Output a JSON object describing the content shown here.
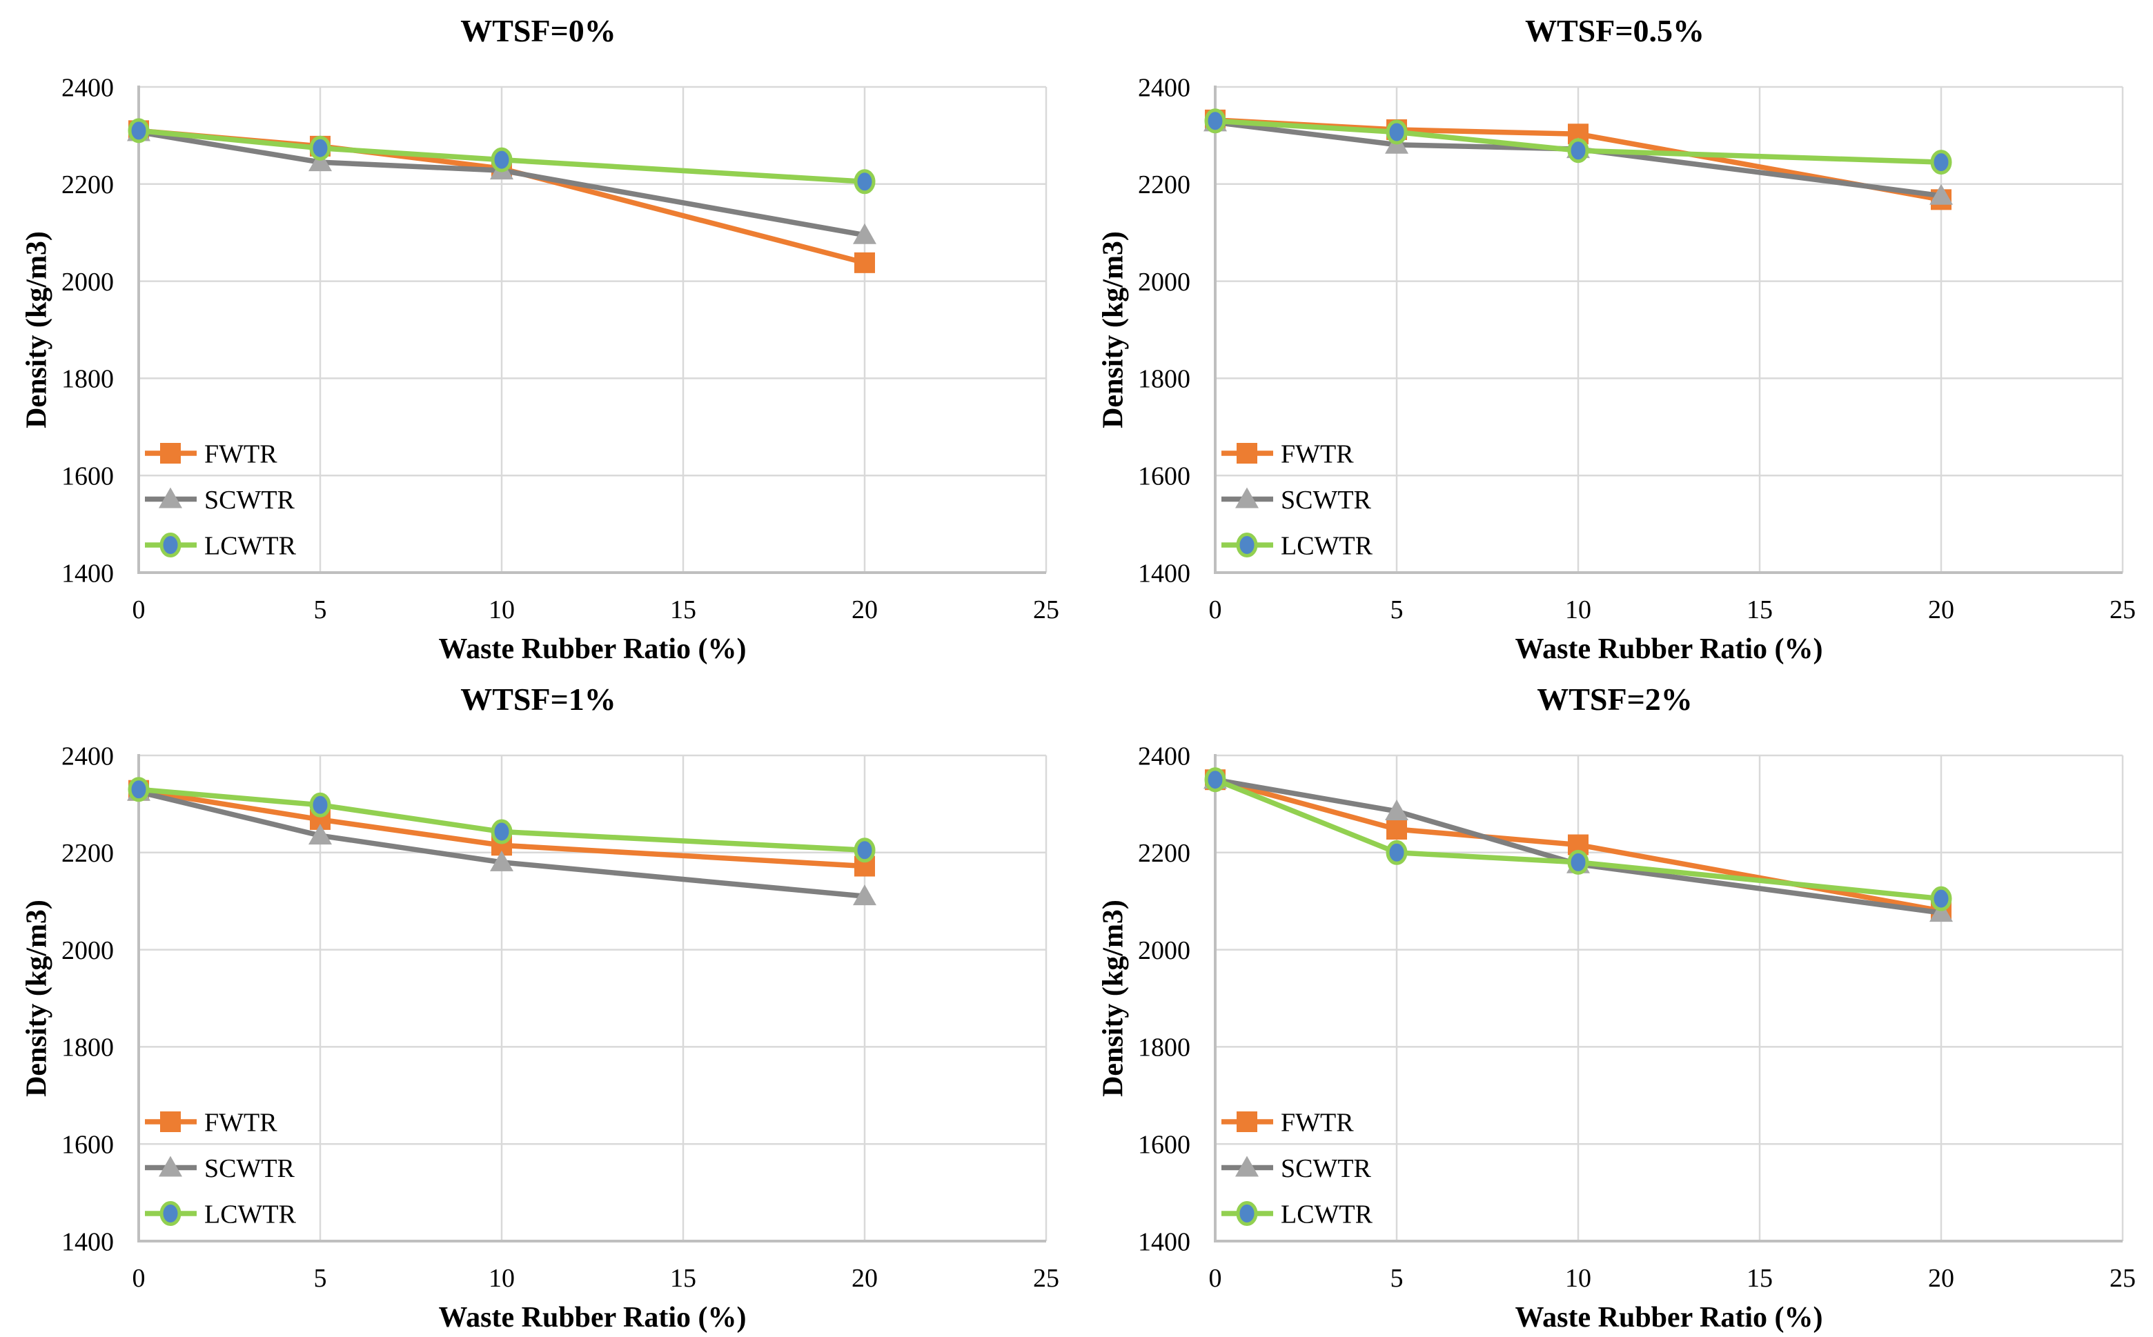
{
  "page": {
    "background": "#ffffff"
  },
  "colors": {
    "fwtr": "#ED7D31",
    "scwtr_line": "#7F7F7F",
    "scwtr_marker": "#A6A6A6",
    "lcwtr": "#92D050",
    "lcwtr_marker_fill": "#4E86C8",
    "gridline": "#D9D9D9",
    "axis_line": "#BFBFBF",
    "text": "#000000"
  },
  "legend": {
    "items": [
      "FWTR",
      "SCWTR",
      "LCWTR"
    ]
  },
  "chart_data": [
    {
      "id": "wtsf-0",
      "type": "line",
      "title": "WTSF=0%",
      "xlabel": "Waste Rubber Ratio (%)",
      "ylabel": "Density (kg/m3)",
      "xlim": [
        0,
        25
      ],
      "ylim": [
        1400,
        2400
      ],
      "xticks": [
        0,
        5,
        10,
        15,
        20,
        25
      ],
      "yticks": [
        1400,
        1600,
        1800,
        2000,
        2200,
        2400
      ],
      "grid": true,
      "legend_position": "lower-left",
      "x": [
        0,
        5,
        10,
        20
      ],
      "series": [
        {
          "name": "FWTR",
          "marker": "square",
          "values": [
            2310,
            2278,
            2232,
            2038
          ]
        },
        {
          "name": "SCWTR",
          "marker": "triangle",
          "values": [
            2307,
            2245,
            2228,
            2095
          ]
        },
        {
          "name": "LCWTR",
          "marker": "circle",
          "values": [
            2310,
            2274,
            2250,
            2205
          ]
        }
      ]
    },
    {
      "id": "wtsf-0-5",
      "type": "line",
      "title": "WTSF=0.5%",
      "xlabel": "Waste Rubber Ratio (%)",
      "ylabel": "Density (kg/m3)",
      "xlim": [
        0,
        25
      ],
      "ylim": [
        1400,
        2400
      ],
      "xticks": [
        0,
        5,
        10,
        15,
        20,
        25
      ],
      "yticks": [
        1400,
        1600,
        1800,
        2000,
        2200,
        2400
      ],
      "grid": true,
      "legend_position": "lower-left",
      "x": [
        0,
        5,
        10,
        20
      ],
      "series": [
        {
          "name": "FWTR",
          "marker": "square",
          "values": [
            2332,
            2312,
            2303,
            2168
          ]
        },
        {
          "name": "SCWTR",
          "marker": "triangle",
          "values": [
            2327,
            2281,
            2272,
            2176
          ]
        },
        {
          "name": "LCWTR",
          "marker": "circle",
          "values": [
            2330,
            2307,
            2269,
            2245
          ]
        }
      ]
    },
    {
      "id": "wtsf-1",
      "type": "line",
      "title": "WTSF=1%",
      "xlabel": "Waste Rubber Ratio (%)",
      "ylabel": "Density (kg/m3)",
      "xlim": [
        0,
        25
      ],
      "ylim": [
        1400,
        2400
      ],
      "xticks": [
        0,
        5,
        10,
        15,
        20,
        25
      ],
      "yticks": [
        1400,
        1600,
        1800,
        2000,
        2200,
        2400
      ],
      "grid": true,
      "legend_position": "lower-left",
      "x": [
        0,
        5,
        10,
        20
      ],
      "series": [
        {
          "name": "FWTR",
          "marker": "square",
          "values": [
            2328,
            2268,
            2215,
            2172
          ]
        },
        {
          "name": "SCWTR",
          "marker": "triangle",
          "values": [
            2325,
            2235,
            2180,
            2110
          ]
        },
        {
          "name": "LCWTR",
          "marker": "circle",
          "values": [
            2330,
            2298,
            2243,
            2205
          ]
        }
      ]
    },
    {
      "id": "wtsf-2",
      "type": "line",
      "title": "WTSF=2%",
      "xlabel": "Waste Rubber Ratio (%)",
      "ylabel": "Density (kg/m3)",
      "xlim": [
        0,
        25
      ],
      "ylim": [
        1400,
        2400
      ],
      "xticks": [
        0,
        5,
        10,
        15,
        20,
        25
      ],
      "yticks": [
        1400,
        1600,
        1800,
        2000,
        2200,
        2400
      ],
      "grid": true,
      "legend_position": "lower-left",
      "x": [
        0,
        5,
        10,
        20
      ],
      "series": [
        {
          "name": "FWTR",
          "marker": "square",
          "values": [
            2350,
            2248,
            2216,
            2080
          ]
        },
        {
          "name": "SCWTR",
          "marker": "triangle",
          "values": [
            2350,
            2285,
            2176,
            2076
          ]
        },
        {
          "name": "LCWTR",
          "marker": "circle",
          "values": [
            2350,
            2200,
            2180,
            2105
          ]
        }
      ]
    }
  ]
}
